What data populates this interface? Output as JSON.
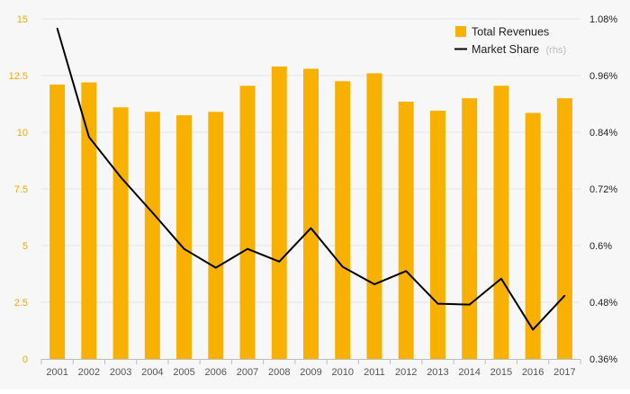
{
  "chart_data": {
    "type": "bar+line",
    "categories": [
      "2001",
      "2002",
      "2003",
      "2004",
      "2005",
      "2006",
      "2007",
      "2008",
      "2009",
      "2010",
      "2011",
      "2012",
      "2013",
      "2014",
      "2015",
      "2016",
      "2017"
    ],
    "series": [
      {
        "name": "Total Revenues",
        "type": "bar",
        "axis": "left",
        "color": "#f8b100",
        "values": [
          12.1,
          12.2,
          11.1,
          10.9,
          10.75,
          10.9,
          12.05,
          12.9,
          12.8,
          12.25,
          12.6,
          11.35,
          10.95,
          11.5,
          12.05,
          10.85,
          11.5
        ]
      },
      {
        "name": "Market Share",
        "type": "line",
        "axis": "right",
        "color": "#000000",
        "values": [
          1.06,
          0.83,
          0.745,
          0.67,
          0.593,
          0.553,
          0.593,
          0.566,
          0.637,
          0.555,
          0.518,
          0.546,
          0.477,
          0.475,
          0.53,
          0.422,
          0.494
        ]
      }
    ],
    "left_axis": {
      "min": 0,
      "max": 15,
      "ticks": [
        "0",
        "2.5",
        "5",
        "7.5",
        "10",
        "12.5",
        "15"
      ],
      "tick_color": "#f0ab00"
    },
    "right_axis": {
      "min": 0.36,
      "max": 1.08,
      "ticks": [
        "0.36%",
        "0.48%",
        "0.6%",
        "0.72%",
        "0.84%",
        "0.96%",
        "1.08%"
      ]
    },
    "legend": {
      "placement": "top-right",
      "items": [
        {
          "label": "Total Revenues",
          "note": ""
        },
        {
          "label": "Market Share",
          "note": "(rhs)"
        }
      ]
    },
    "grid": true,
    "title": "",
    "xlabel": "",
    "ylabel": ""
  }
}
